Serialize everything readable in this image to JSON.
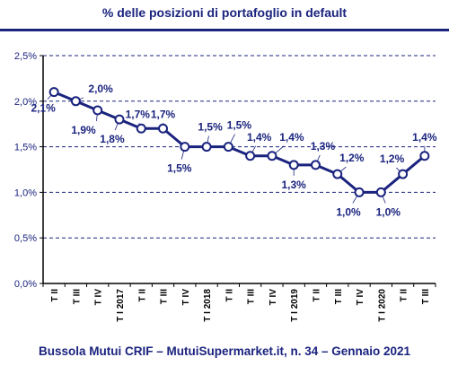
{
  "chart_data": {
    "type": "line",
    "title": "% delle posizioni di portafoglio in default",
    "source": "Bussola Mutui CRIF – MutuiSupermarket.it, n. 34 – Gennaio 2021",
    "xlabel": "",
    "ylabel": "",
    "ylim": [
      0,
      2.5
    ],
    "yticks": [
      0,
      0.5,
      1.0,
      1.5,
      2.0,
      2.5
    ],
    "ytick_labels": [
      "0,0%",
      "0,5%",
      "1,0%",
      "1,5%",
      "2,0%",
      "2,5%"
    ],
    "grid": true,
    "categories": [
      "T II",
      "T III",
      "T IV",
      "T I 2017",
      "T II",
      "T III",
      "T IV",
      "T I 2018",
      "T II",
      "T III",
      "T IV",
      "T I 2019",
      "T II",
      "T III",
      "T IV",
      "T I 2020",
      "T II",
      "T III"
    ],
    "series": [
      {
        "values": [
          2.1,
          2.0,
          1.9,
          1.8,
          1.7,
          1.7,
          1.5,
          1.5,
          1.5,
          1.4,
          1.4,
          1.3,
          1.3,
          1.2,
          1.0,
          1.0,
          1.2,
          1.4
        ],
        "point_labels": [
          "2,1%",
          "2,0%",
          "1,9%",
          "1,8%",
          "1,7%",
          "1,7%",
          "1,5%",
          "1,5%",
          "1,5%",
          "1,4%",
          "1,4%",
          "1,3%",
          "1,3%",
          "1,2%",
          "1,0%",
          "1,0%",
          "1,2%",
          "1,4%"
        ]
      }
    ],
    "colors": {
      "line": "#1a237e",
      "marker_fill": "#ffffff",
      "grid": "#1a237e",
      "text": "#1a237e"
    }
  }
}
